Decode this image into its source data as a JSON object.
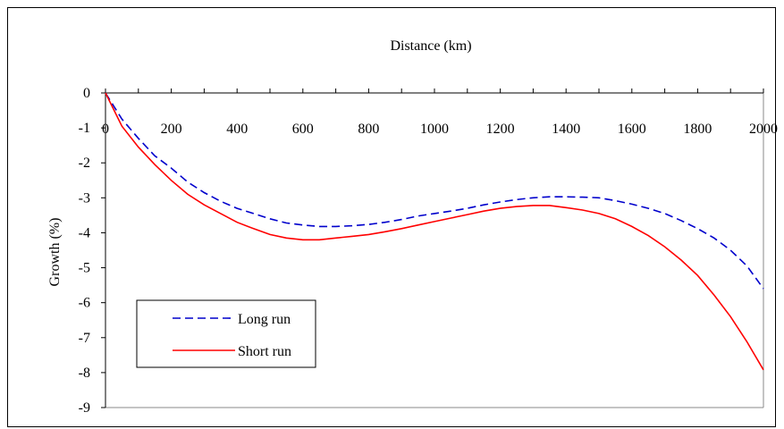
{
  "chart_data": {
    "type": "line",
    "title": "",
    "xlabel": "Distance (km)",
    "ylabel": "Growth (%)",
    "xlim": [
      0,
      2000
    ],
    "ylim": [
      -9,
      0
    ],
    "x_ticks": [
      0,
      200,
      400,
      600,
      800,
      1000,
      1200,
      1400,
      1600,
      1800,
      2000
    ],
    "x_tick_labels": [
      "0",
      "200",
      "400",
      "600",
      "800",
      "1000",
      "1200",
      "1400",
      "1600",
      "1800",
      "2000"
    ],
    "y_ticks": [
      0,
      -1,
      -2,
      -3,
      -4,
      -5,
      -6,
      -7,
      -8,
      -9
    ],
    "y_tick_labels": [
      "0",
      "-1",
      "-2",
      "-3",
      "-4",
      "-5",
      "-6",
      "-7",
      "-8",
      "-9"
    ],
    "x_axis_position": "top",
    "grid": false,
    "legend_position": "bottom-left",
    "series": [
      {
        "name": "Long run",
        "color": "#0000cc",
        "style": "dashed",
        "x": [
          0,
          50,
          100,
          150,
          200,
          250,
          300,
          350,
          400,
          450,
          500,
          550,
          600,
          650,
          700,
          750,
          800,
          850,
          900,
          950,
          1000,
          1050,
          1100,
          1150,
          1200,
          1250,
          1300,
          1350,
          1400,
          1450,
          1500,
          1550,
          1600,
          1650,
          1700,
          1750,
          1800,
          1850,
          1900,
          1950,
          2000
        ],
        "y": [
          0,
          -0.75,
          -1.3,
          -1.8,
          -2.15,
          -2.55,
          -2.85,
          -3.1,
          -3.3,
          -3.45,
          -3.6,
          -3.72,
          -3.78,
          -3.82,
          -3.82,
          -3.8,
          -3.76,
          -3.7,
          -3.62,
          -3.52,
          -3.45,
          -3.38,
          -3.3,
          -3.2,
          -3.12,
          -3.05,
          -3.0,
          -2.97,
          -2.97,
          -2.98,
          -3.0,
          -3.08,
          -3.18,
          -3.3,
          -3.45,
          -3.65,
          -3.88,
          -4.15,
          -4.5,
          -4.95,
          -5.6
        ]
      },
      {
        "name": "Short run",
        "color": "#ff0000",
        "style": "solid",
        "x": [
          0,
          50,
          100,
          150,
          200,
          250,
          300,
          350,
          400,
          450,
          500,
          550,
          600,
          650,
          700,
          750,
          800,
          850,
          900,
          950,
          1000,
          1050,
          1100,
          1150,
          1200,
          1250,
          1300,
          1350,
          1400,
          1450,
          1500,
          1550,
          1600,
          1650,
          1700,
          1750,
          1800,
          1850,
          1900,
          1950,
          2000
        ],
        "y": [
          0,
          -0.95,
          -1.55,
          -2.05,
          -2.5,
          -2.9,
          -3.2,
          -3.45,
          -3.7,
          -3.88,
          -4.05,
          -4.15,
          -4.2,
          -4.2,
          -4.15,
          -4.1,
          -4.05,
          -3.97,
          -3.88,
          -3.78,
          -3.68,
          -3.58,
          -3.48,
          -3.38,
          -3.3,
          -3.25,
          -3.22,
          -3.22,
          -3.28,
          -3.35,
          -3.45,
          -3.6,
          -3.82,
          -4.08,
          -4.4,
          -4.78,
          -5.22,
          -5.78,
          -6.4,
          -7.12,
          -7.92
        ]
      }
    ]
  }
}
